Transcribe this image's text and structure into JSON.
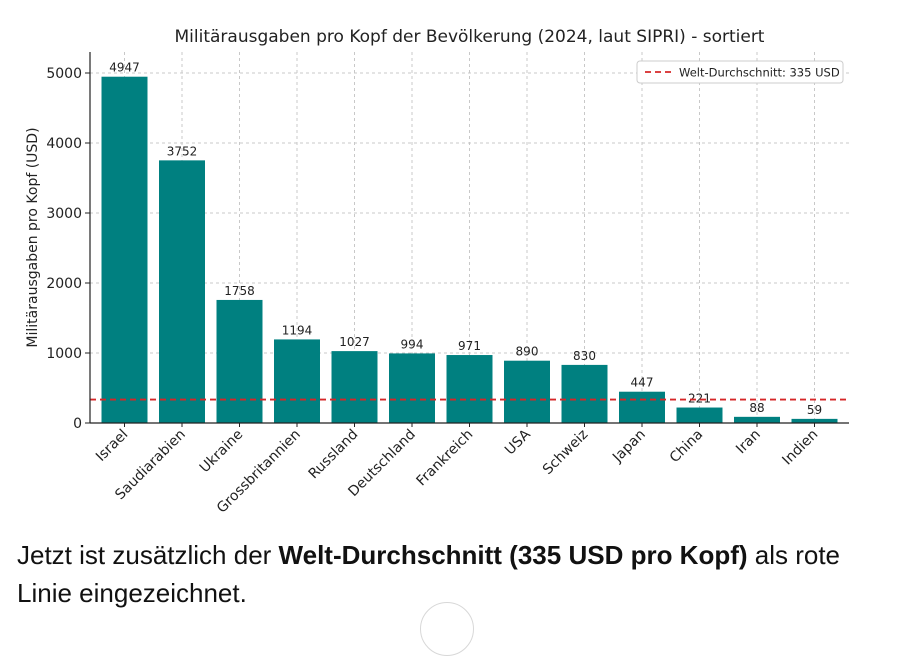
{
  "chart_data": {
    "type": "bar",
    "title": "Militärausgaben pro Kopf der Bevölkerung (2024, laut SIPRI) - sortiert",
    "xlabel": "",
    "ylabel": "Militärausgaben pro Kopf (USD)",
    "ylim": [
      0,
      5300
    ],
    "yticks": [
      0,
      1000,
      2000,
      3000,
      4000,
      5000
    ],
    "categories": [
      "Israel",
      "Saudiarabien",
      "Ukraine",
      "Grossbritannien",
      "Russland",
      "Deutschland",
      "Frankreich",
      "USA",
      "Schweiz",
      "Japan",
      "China",
      "Iran",
      "Indien"
    ],
    "values": [
      4947,
      3752,
      1758,
      1194,
      1027,
      994,
      971,
      890,
      830,
      447,
      221,
      88,
      59
    ],
    "bar_color": "#008080",
    "grid": true,
    "reference_line": {
      "value": 335,
      "label": "Welt-Durchschnitt: 335 USD",
      "color": "#d62728"
    },
    "legend_position": "top-right"
  },
  "caption": {
    "before": "Jetzt ist zusätzlich der ",
    "bold": "Welt-Durchschnitt (335 USD pro Kopf)",
    "after": " als rote Linie eingezeichnet."
  }
}
